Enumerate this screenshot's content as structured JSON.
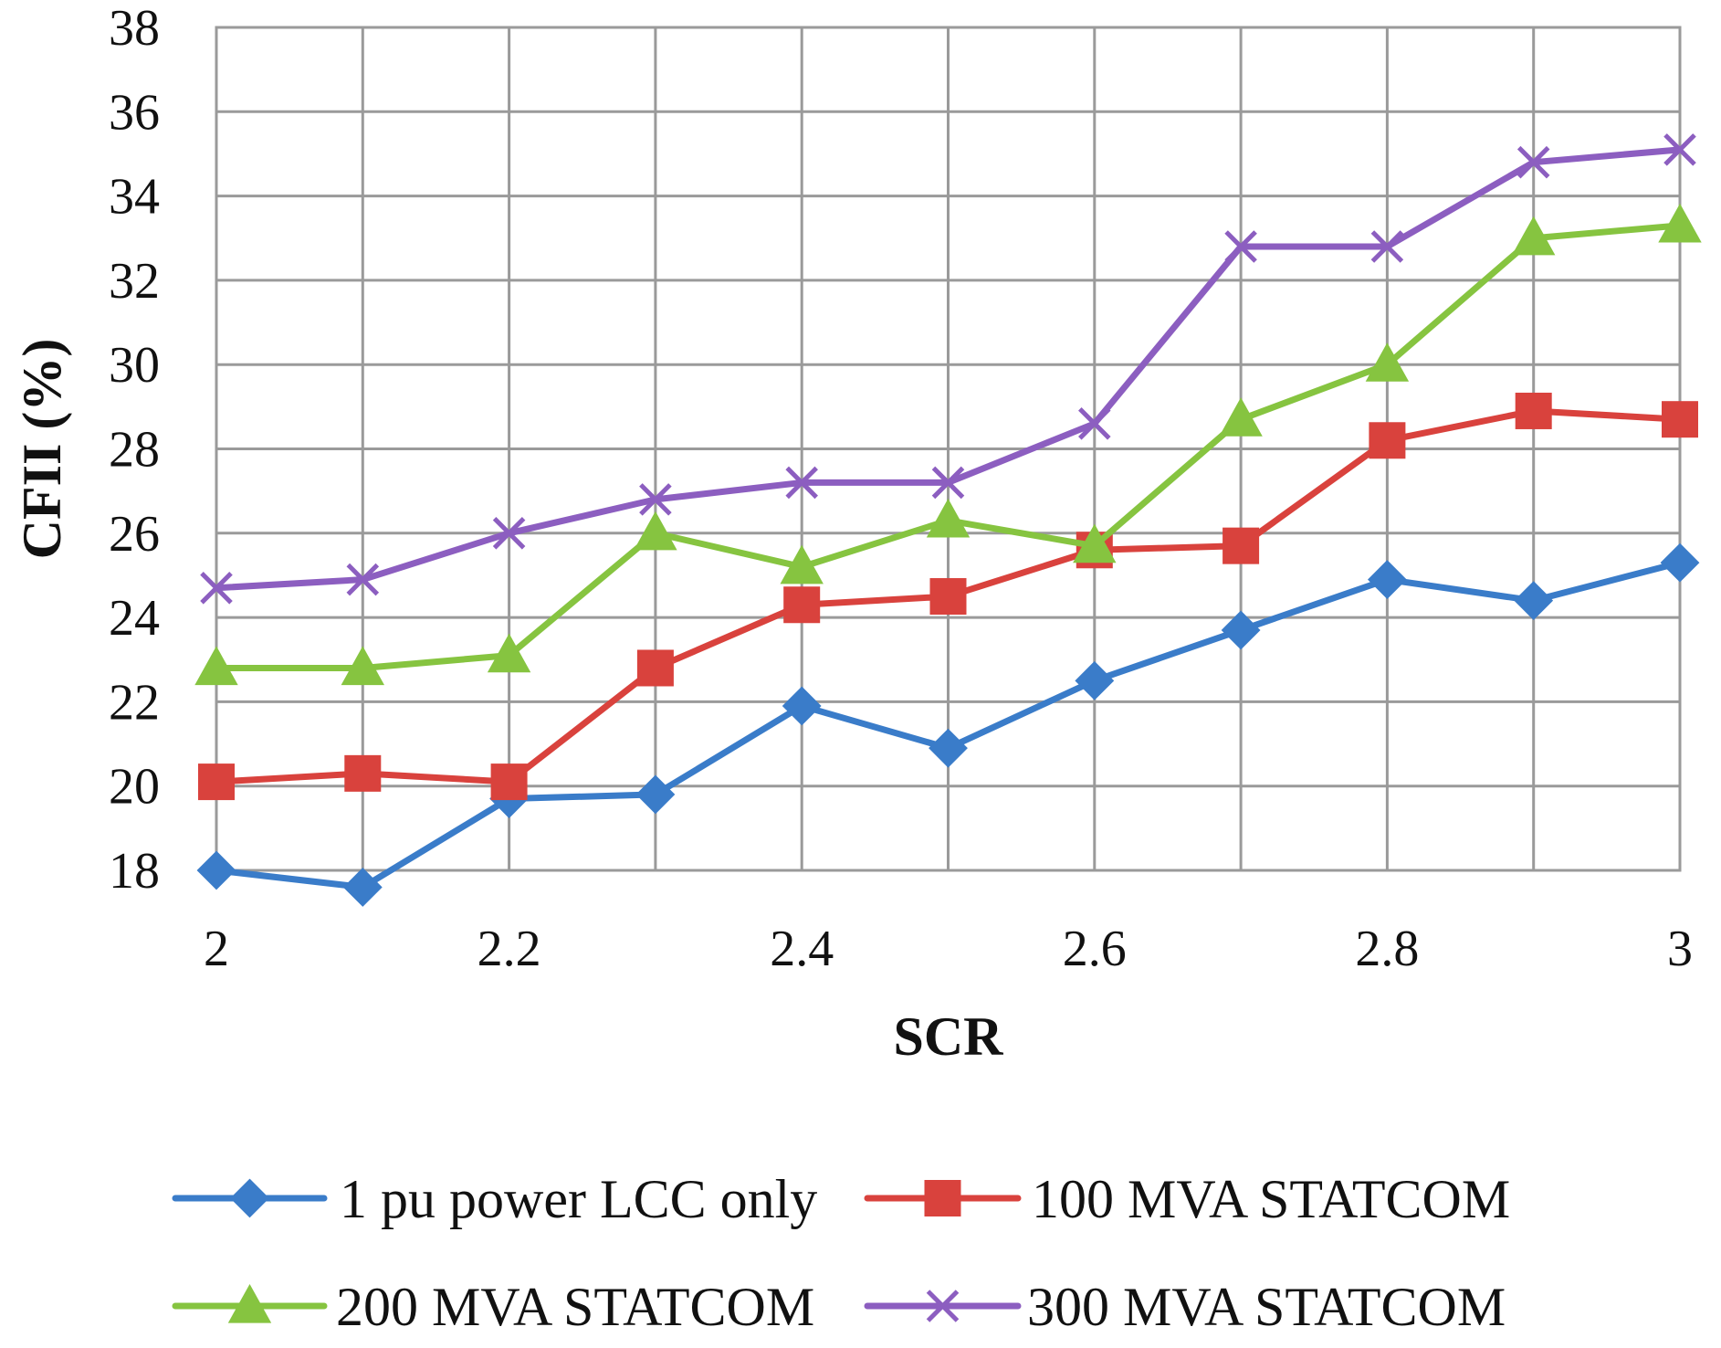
{
  "chart_data": {
    "type": "line",
    "title": "",
    "xlabel": "SCR",
    "ylabel": "CFII (%)",
    "xlim": [
      2,
      3
    ],
    "ylim": [
      18,
      38
    ],
    "x_ticks": [
      2,
      2.2,
      2.4,
      2.6,
      2.8,
      3
    ],
    "x_tick_labels": [
      "2",
      "2.2",
      "2.4",
      "2.6",
      "2.8",
      "3"
    ],
    "y_ticks": [
      18,
      20,
      22,
      24,
      26,
      28,
      30,
      32,
      34,
      36,
      38
    ],
    "y_tick_labels": [
      "18",
      "20",
      "22",
      "24",
      "26",
      "28",
      "30",
      "32",
      "34",
      "36",
      "38"
    ],
    "grid": true,
    "legend_position": "bottom",
    "x": [
      2.0,
      2.1,
      2.2,
      2.3,
      2.4,
      2.5,
      2.6,
      2.7,
      2.8,
      2.9,
      3.0
    ],
    "series": [
      {
        "name": "1 pu power LCC only",
        "color": "#3a7cc9",
        "marker": "diamond",
        "values": [
          18.0,
          17.6,
          19.7,
          19.8,
          21.9,
          20.9,
          22.5,
          23.7,
          24.9,
          24.4,
          25.3
        ]
      },
      {
        "name": "100 MVA STATCOM",
        "color": "#d9423d",
        "marker": "square",
        "values": [
          20.1,
          20.3,
          20.1,
          22.8,
          24.3,
          24.5,
          25.6,
          25.7,
          28.2,
          28.9,
          28.7
        ]
      },
      {
        "name": "200 MVA STATCOM",
        "color": "#86c440",
        "marker": "triangle",
        "values": [
          22.8,
          22.8,
          23.1,
          26.0,
          25.2,
          26.3,
          25.7,
          28.7,
          30.0,
          33.0,
          33.3
        ]
      },
      {
        "name": "300 MVA STATCOM",
        "color": "#8c5ec0",
        "marker": "x",
        "values": [
          24.7,
          24.9,
          26.0,
          26.8,
          27.2,
          27.2,
          28.6,
          32.8,
          32.8,
          34.8,
          35.1
        ]
      }
    ]
  }
}
